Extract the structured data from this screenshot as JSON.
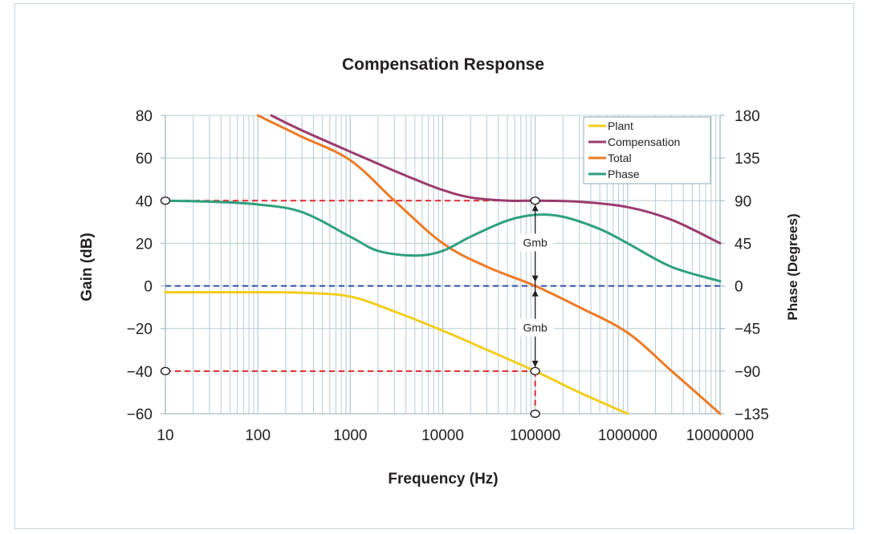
{
  "chart_data": {
    "type": "line",
    "title": "Compensation Response",
    "xlabel": "Frequency (Hz)",
    "ylabel": "Gain (dB)",
    "y2label": "Phase (Degrees)",
    "xscale": "log",
    "xlim": [
      10,
      10000000
    ],
    "ylim": [
      -60,
      80
    ],
    "y2lim": [
      -135,
      180
    ],
    "xticks": [
      "10",
      "100",
      "1000",
      "10000",
      "100000",
      "1000000",
      "10000000"
    ],
    "yticks": [
      "80",
      "60",
      "40",
      "20",
      "0",
      "−20",
      "−40",
      "−60"
    ],
    "y2ticks": [
      "180",
      "135",
      "90",
      "45",
      "0",
      "−45",
      "−90",
      "−135"
    ],
    "grid": true,
    "legend_position": "top-right",
    "series": [
      {
        "name": "Plant",
        "color": "#f2cd1d",
        "axis": "left",
        "x": [
          10,
          30,
          100,
          300,
          1000,
          3000,
          10000,
          30000,
          100000,
          300000,
          1000000
        ],
        "values": [
          -3,
          -3,
          -3,
          -3.2,
          -5,
          -12,
          -21,
          -30,
          -40,
          -50,
          -60
        ]
      },
      {
        "name": "Compensation",
        "color": "#9b3b6e",
        "axis": "left",
        "x": [
          140,
          300,
          1000,
          3000,
          5000,
          10000,
          20000,
          50000,
          100000,
          300000,
          1000000,
          3000000,
          10000000
        ],
        "values": [
          80,
          73,
          63,
          54,
          50,
          45,
          41.5,
          40,
          40,
          39.5,
          37,
          31,
          20
        ]
      },
      {
        "name": "Total",
        "color": "#ec7a27",
        "axis": "left",
        "x": [
          100,
          300,
          1000,
          3000,
          10000,
          30000,
          100000,
          300000,
          1000000,
          3000000,
          10000000
        ],
        "values": [
          80,
          70,
          59,
          40,
          20,
          9,
          0,
          -10,
          -22,
          -40,
          -60
        ]
      },
      {
        "name": "Phase",
        "color": "#2fa07c",
        "axis": "right",
        "x": [
          10,
          30,
          100,
          300,
          1000,
          2000,
          5000,
          10000,
          20000,
          50000,
          100000,
          200000,
          500000,
          1000000,
          3000000,
          10000000
        ],
        "values": [
          90,
          89,
          86,
          78,
          52,
          37,
          32,
          37,
          52,
          69,
          75,
          73,
          60,
          45,
          20,
          5
        ]
      }
    ],
    "annotations": [
      {
        "text": "Gmb",
        "x": 100000,
        "y": 20
      },
      {
        "text": "Gmb",
        "x": 100000,
        "y": -20
      }
    ],
    "reference_lines": [
      {
        "orientation": "horizontal",
        "y": 40,
        "x_from": 10,
        "x_to": 100000,
        "color": "#e02b2b",
        "style": "dashed"
      },
      {
        "orientation": "horizontal",
        "y": -40,
        "x_from": 10,
        "x_to": 100000,
        "color": "#e02b2b",
        "style": "dashed"
      },
      {
        "orientation": "horizontal",
        "y": 0,
        "x_from": 10,
        "x_to": 10000000,
        "color": "#2f50a8",
        "style": "dashed"
      },
      {
        "orientation": "vertical",
        "x": 100000,
        "y_from": -40,
        "y_to": -60,
        "color": "#e02b2b",
        "style": "dashed"
      }
    ],
    "markers": [
      {
        "x": 10,
        "y": 40
      },
      {
        "x": 100000,
        "y": 40
      },
      {
        "x": 10,
        "y": -40
      },
      {
        "x": 100000,
        "y": -40
      },
      {
        "x": 100000,
        "y": -60
      }
    ]
  }
}
